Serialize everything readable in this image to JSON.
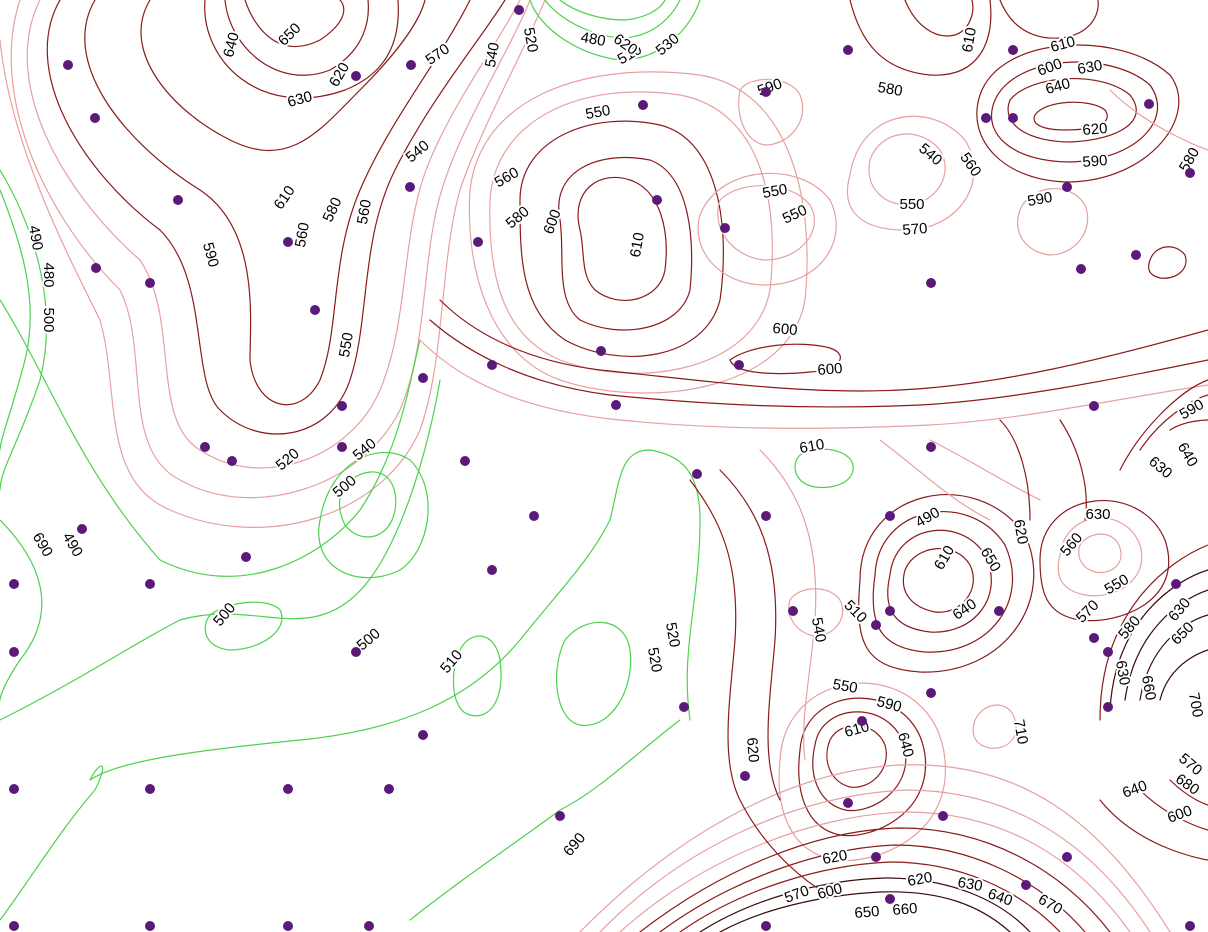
{
  "map": {
    "type": "contour",
    "colors": {
      "background": "#ffffff",
      "low": "#4cd24c",
      "mid": "#e8a0a0",
      "high": "#8b1a1a",
      "very_high": "#3a0a0a",
      "sample_point": "#5b1a7a"
    },
    "contour_labels": [
      "640",
      "650",
      "630",
      "620",
      "570",
      "540",
      "520",
      "480",
      "510",
      "530",
      "550",
      "590",
      "620",
      "610",
      "600",
      "610",
      "630",
      "640",
      "620",
      "590",
      "580",
      "580",
      "540",
      "560",
      "540",
      "560",
      "580",
      "600",
      "610",
      "560",
      "550",
      "550",
      "570",
      "550",
      "590",
      "490",
      "480",
      "500",
      "610",
      "580",
      "560",
      "590",
      "600",
      "550",
      "600",
      "590",
      "640",
      "630",
      "610",
      "520",
      "540",
      "500",
      "490",
      "620",
      "610",
      "650",
      "640",
      "630",
      "560",
      "550",
      "570",
      "580",
      "630",
      "650",
      "690",
      "490",
      "500",
      "500",
      "510",
      "520",
      "520",
      "510",
      "540",
      "550",
      "590",
      "610",
      "640",
      "630",
      "660",
      "700",
      "710",
      "570",
      "680",
      "640",
      "600",
      "620",
      "620",
      "570",
      "600",
      "620",
      "630",
      "640",
      "650",
      "660",
      "670",
      "690",
      "610",
      "530"
    ]
  }
}
